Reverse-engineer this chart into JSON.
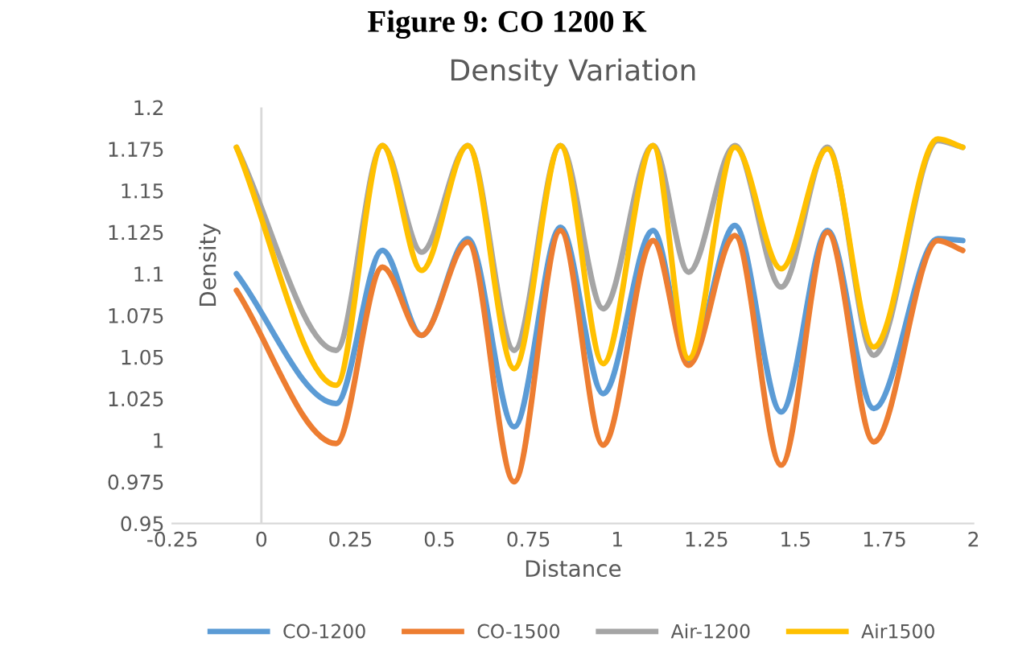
{
  "chart_data": {
    "type": "line",
    "title": "Density Variation",
    "xlabel": "Distance",
    "ylabel": "Density",
    "annotations": [
      "Figure 9: CO 1200 K"
    ],
    "x": [
      -0.07,
      0.21,
      0.34,
      0.45,
      0.58,
      0.71,
      0.84,
      0.96,
      1.1,
      1.2,
      1.33,
      1.46,
      1.59,
      1.72,
      1.9,
      1.97
    ],
    "series": [
      {
        "name": "CO-1200",
        "color": "#5b9bd5",
        "values": [
          1.1,
          1.022,
          1.114,
          1.063,
          1.121,
          1.008,
          1.128,
          1.028,
          1.126,
          1.047,
          1.129,
          1.017,
          1.126,
          1.019,
          1.121,
          1.12
        ]
      },
      {
        "name": "CO-1500",
        "color": "#ed7d31",
        "values": [
          1.09,
          0.998,
          1.104,
          1.063,
          1.119,
          0.975,
          1.126,
          0.997,
          1.12,
          1.045,
          1.123,
          0.985,
          1.125,
          0.999,
          1.12,
          1.114
        ]
      },
      {
        "name": "Air-1200",
        "color": "#a5a5a5",
        "values": [
          1.176,
          1.054,
          1.177,
          1.113,
          1.177,
          1.054,
          1.177,
          1.079,
          1.177,
          1.101,
          1.177,
          1.092,
          1.176,
          1.051,
          1.18,
          1.176
        ]
      },
      {
        "name": "Air1500",
        "color": "#ffc000",
        "values": [
          1.176,
          1.033,
          1.177,
          1.102,
          1.177,
          1.043,
          1.177,
          1.046,
          1.177,
          1.049,
          1.176,
          1.103,
          1.175,
          1.056,
          1.181,
          1.176
        ]
      }
    ],
    "xlim": [
      -0.25,
      2
    ],
    "xticks": [
      -0.25,
      0,
      0.25,
      0.5,
      0.75,
      1,
      1.25,
      1.5,
      1.75,
      2
    ],
    "ylim": [
      0.95,
      1.2
    ],
    "yticks": [
      0.95,
      0.975,
      1,
      1.025,
      1.05,
      1.075,
      1.1,
      1.125,
      1.15,
      1.175,
      1.2
    ],
    "ref_lines": [
      {
        "axis": "x",
        "value": 0,
        "color": "#d9d9d9"
      }
    ],
    "grid": false,
    "legend": "bottom",
    "marker": "none",
    "line_style": "solid"
  }
}
